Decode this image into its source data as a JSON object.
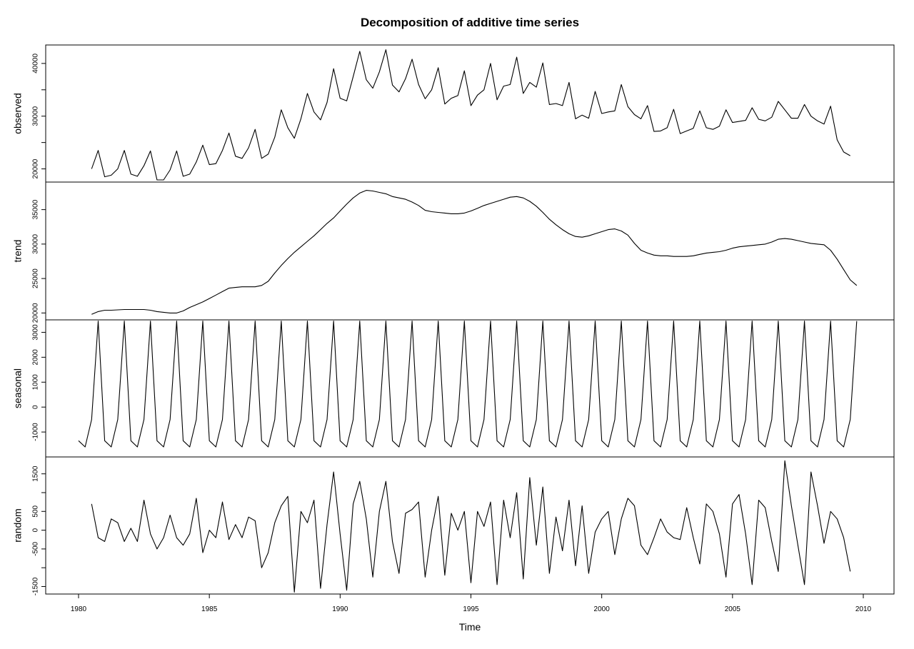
{
  "chart_data": {
    "type": "line",
    "title": "Decomposition of additive time series",
    "xlabel": "Time",
    "xlim": [
      1980,
      2010
    ],
    "x_ticks": [
      1980,
      1985,
      1990,
      1995,
      2000,
      2005,
      2010
    ],
    "x_start": 1980,
    "frequency": 4,
    "panels": [
      {
        "name": "observed",
        "ylabel": "observed",
        "ylim": [
          17500,
          43500
        ],
        "y_ticks": [
          20000,
          30000,
          40000
        ],
        "minor_ticks": [
          25000,
          35000
        ],
        "values": [
          null,
          null,
          20000,
          23500,
          18500,
          18800,
          20000,
          23500,
          19000,
          18600,
          20600,
          23400,
          17900,
          17900,
          19800,
          23400,
          18600,
          19000,
          21300,
          24500,
          20800,
          21000,
          23500,
          26800,
          22400,
          22000,
          24000,
          27500,
          22000,
          22800,
          26000,
          31200,
          27800,
          25800,
          29500,
          34300,
          30800,
          29300,
          32600,
          39000,
          33400,
          32900,
          37500,
          42300,
          36900,
          35300,
          38400,
          42600,
          35900,
          34600,
          37100,
          40800,
          36000,
          33300,
          35000,
          39200,
          32300,
          33400,
          33900,
          38600,
          32000,
          34000,
          35000,
          40000,
          33100,
          35700,
          36000,
          41200,
          34300,
          36400,
          35500,
          40100,
          32200,
          32400,
          32000,
          36400,
          29500,
          30200,
          29600,
          34700,
          30500,
          30800,
          31000,
          36000,
          31800,
          30300,
          29500,
          32000,
          27100,
          27200,
          27800,
          31300,
          26700,
          27200,
          27700,
          31000,
          27800,
          27500,
          28100,
          31200,
          28800,
          29000,
          29200,
          31600,
          29400,
          29100,
          29800,
          32800,
          31200,
          29600,
          29600,
          32200,
          30000,
          29100,
          28500,
          31900,
          25500,
          23200,
          22500
        ]
      },
      {
        "name": "trend",
        "ylabel": "trend",
        "ylim": [
          19000,
          39000
        ],
        "y_ticks": [
          20000,
          25000,
          30000,
          35000
        ],
        "minor_ticks": [],
        "values": [
          null,
          null,
          19800,
          20200,
          20400,
          20400,
          20450,
          20500,
          20500,
          20500,
          20500,
          20400,
          20200,
          20100,
          20000,
          20000,
          20300,
          20800,
          21200,
          21600,
          22100,
          22600,
          23100,
          23600,
          23700,
          23800,
          23800,
          23800,
          24000,
          24600,
          25800,
          26900,
          27900,
          28800,
          29600,
          30400,
          31200,
          32100,
          33000,
          33800,
          34800,
          35800,
          36700,
          37400,
          37800,
          37700,
          37500,
          37300,
          36900,
          36700,
          36500,
          36100,
          35600,
          34900,
          34700,
          34600,
          34500,
          34400,
          34400,
          34500,
          34800,
          35200,
          35600,
          35900,
          36200,
          36500,
          36800,
          36900,
          36700,
          36200,
          35500,
          34600,
          33600,
          32800,
          32100,
          31500,
          31100,
          31000,
          31200,
          31500,
          31800,
          32100,
          32200,
          31900,
          31300,
          30100,
          29100,
          28700,
          28400,
          28300,
          28300,
          28200,
          28200,
          28200,
          28300,
          28500,
          28700,
          28800,
          28900,
          29100,
          29400,
          29600,
          29700,
          29800,
          29900,
          30000,
          30300,
          30700,
          30800,
          30700,
          30500,
          30300,
          30100,
          30000,
          29900,
          29100,
          27800,
          26300,
          24800,
          24000
        ]
      },
      {
        "name": "seasonal",
        "ylabel": "seasonal",
        "ylim": [
          -2000,
          3500
        ],
        "y_ticks": [
          -1000,
          0,
          1000,
          2000,
          3000
        ],
        "minor_ticks": [],
        "pattern": [
          -1350,
          -1600,
          -500,
          3450
        ]
      },
      {
        "name": "random",
        "ylabel": "random",
        "ylim": [
          -1700,
          1950
        ],
        "y_ticks": [
          -1500,
          -500,
          0,
          500,
          1500
        ],
        "minor_ticks": [
          -1000,
          1000
        ],
        "values": [
          null,
          null,
          700,
          -200,
          -300,
          300,
          200,
          -300,
          50,
          -300,
          800,
          -100,
          -500,
          -200,
          400,
          -200,
          -400,
          -100,
          850,
          -600,
          0,
          -200,
          750,
          -250,
          150,
          -200,
          350,
          250,
          -1000,
          -600,
          200,
          650,
          900,
          -1650,
          500,
          200,
          800,
          -1550,
          150,
          1550,
          -100,
          -1600,
          700,
          1300,
          300,
          -1250,
          500,
          1300,
          -300,
          -1150,
          450,
          550,
          750,
          -1250,
          0,
          900,
          -1200,
          450,
          0,
          500,
          -1400,
          500,
          100,
          750,
          -1450,
          800,
          -200,
          1000,
          -1300,
          1400,
          -400,
          1150,
          -1150,
          350,
          -550,
          800,
          -950,
          650,
          -1150,
          -50,
          300,
          500,
          -650,
          300,
          850,
          650,
          -400,
          -650,
          -200,
          300,
          -50,
          -200,
          -250,
          600,
          -200,
          -900,
          700,
          500,
          -100,
          -1250,
          700,
          950,
          -100,
          -1450,
          800,
          600,
          -300,
          -1100,
          1850,
          650,
          -400,
          -1450,
          1550,
          650,
          -350,
          500,
          300,
          -200,
          -1100
        ]
      }
    ]
  }
}
